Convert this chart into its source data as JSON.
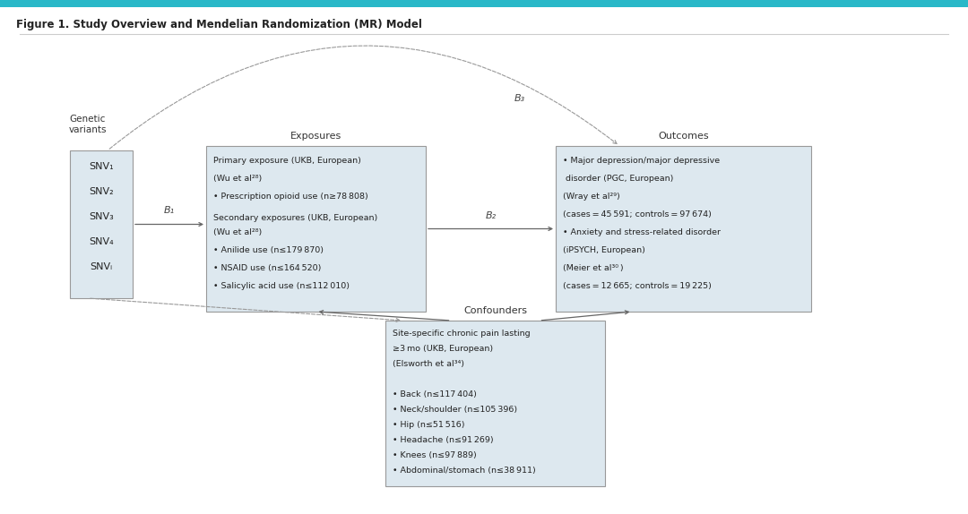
{
  "title": "Figure 1. Study Overview and Mendelian Randomization (MR) Model",
  "bg_color": "#ffffff",
  "top_bar_color": "#29b8c8",
  "box_fill": "#dde8ef",
  "box_edge": "#999999",
  "snv_lines": [
    "SNV₁",
    "SNV₂",
    "SNV₃",
    "SNV₄",
    "SNVᵢ"
  ],
  "exposure_text": [
    [
      "Primary exposure (UKB, European)",
      false
    ],
    [
      "(Wu et al²⁸)",
      false
    ],
    [
      "• Prescription opioid use (n≥78 808)",
      false
    ],
    [
      "Secondary exposures (UKB, European)",
      false
    ],
    [
      "(Wu et al²⁸)",
      false
    ],
    [
      "• Anilide use (n≤179 870)",
      false
    ],
    [
      "• NSAID use (n≤164 520)",
      false
    ],
    [
      "• Salicylic acid use (n≤112 010)",
      false
    ]
  ],
  "outcome_text": [
    "• Major depression/major depressive",
    " disorder (PGC, European)",
    "(Wray et al²⁹)",
    "(cases = 45 591; controls = 97 674)",
    "• Anxiety and stress-related disorder",
    "(iPSYCH, European)",
    "(Meier et al³⁰ )",
    "(cases = 12 665; controls = 19 225)"
  ],
  "confounder_text": [
    "Site-specific chronic pain lasting",
    "≥3 mo (UKB, European)",
    "(Elsworth et al³⁴)",
    "",
    "• Back (n≤117 404)",
    "• Neck/shoulder (n≤105 396)",
    "• Hip (n≤51 516)",
    "• Headache (n≤91 269)",
    "• Knees (n≤97 889)",
    "• Abdominal/stomach (n≤38 911)"
  ]
}
